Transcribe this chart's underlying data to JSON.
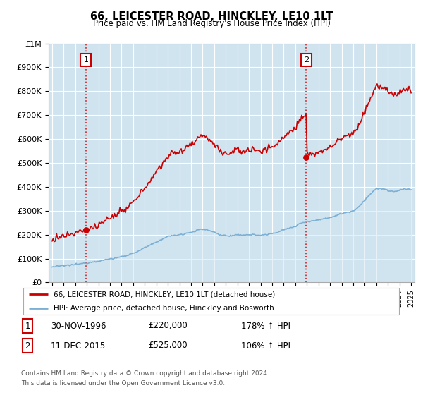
{
  "title": "66, LEICESTER ROAD, HINCKLEY, LE10 1LT",
  "subtitle": "Price paid vs. HM Land Registry's House Price Index (HPI)",
  "ylim": [
    0,
    1000000
  ],
  "yticks": [
    0,
    100000,
    200000,
    300000,
    400000,
    500000,
    600000,
    700000,
    800000,
    900000,
    1000000
  ],
  "ytick_labels": [
    "£0",
    "£100K",
    "£200K",
    "£300K",
    "£400K",
    "£500K",
    "£600K",
    "£700K",
    "£800K",
    "£900K",
    "£1M"
  ],
  "sale1_date": 1996.92,
  "sale1_price": 220000,
  "sale2_date": 2015.95,
  "sale2_price": 525000,
  "legend_line1": "66, LEICESTER ROAD, HINCKLEY, LE10 1LT (detached house)",
  "legend_line2": "HPI: Average price, detached house, Hinckley and Bosworth",
  "row1_label": "1",
  "row1_date": "30-NOV-1996",
  "row1_price": "£220,000",
  "row1_hpi": "178% ↑ HPI",
  "row2_label": "2",
  "row2_date": "11-DEC-2015",
  "row2_price": "£525,000",
  "row2_hpi": "106% ↑ HPI",
  "footnote1": "Contains HM Land Registry data © Crown copyright and database right 2024.",
  "footnote2": "This data is licensed under the Open Government Licence v3.0.",
  "line_color_red": "#cc0000",
  "line_color_blue": "#7bafd4",
  "fill_color_blue": "#d0e4f0",
  "grid_color": "#cccccc",
  "background_color": "#f5f5f5"
}
